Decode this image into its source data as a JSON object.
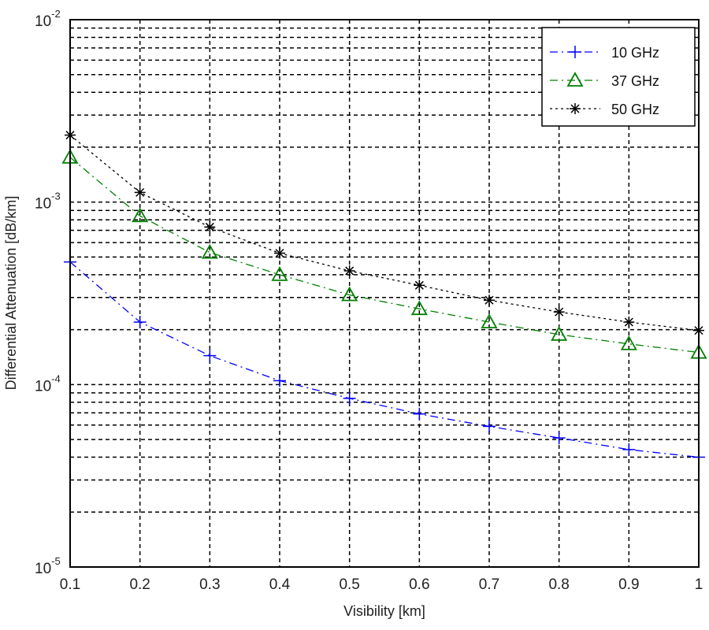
{
  "chart_data": {
    "type": "line",
    "title": "",
    "xlabel": "Visibility [km]",
    "ylabel": "Differential Attenuation [dB/km]",
    "xlim": [
      0.1,
      1.0
    ],
    "ylim": [
      1e-05,
      0.01
    ],
    "yscale": "log",
    "grid": true,
    "legend_position": "top-right",
    "x_ticks": [
      "0.1",
      "0.2",
      "0.3",
      "0.4",
      "0.5",
      "0.6",
      "0.7",
      "0.8",
      "0.9",
      "1"
    ],
    "y_ticks": [
      {
        "base": "10",
        "exp": "-5"
      },
      {
        "base": "10",
        "exp": "-4"
      },
      {
        "base": "10",
        "exp": "-3"
      },
      {
        "base": "10",
        "exp": "-2"
      }
    ],
    "x": [
      0.1,
      0.2,
      0.3,
      0.4,
      0.5,
      0.6,
      0.7,
      0.8,
      0.9,
      1.0
    ],
    "series": [
      {
        "name": "10 GHz",
        "color": "#0000ff",
        "marker": "plus",
        "dash": "10 5 2 5",
        "values": [
          0.00047,
          0.00022,
          0.000144,
          0.000105,
          8.4e-05,
          6.9e-05,
          5.9e-05,
          5.1e-05,
          4.4e-05,
          4e-05
        ]
      },
      {
        "name": "37 GHz",
        "color": "#008000",
        "marker": "triangle",
        "dash": "10 5 2 5",
        "values": [
          0.00176,
          0.00084,
          0.00053,
          0.0004,
          0.00031,
          0.00026,
          0.00022,
          0.000188,
          0.000167,
          0.00015
        ]
      },
      {
        "name": "50 GHz",
        "color": "#000000",
        "marker": "star",
        "dash": "3 4",
        "values": [
          0.00233,
          0.00113,
          0.00073,
          0.000525,
          0.00042,
          0.00035,
          0.00029,
          0.00025,
          0.00022,
          0.000198
        ]
      }
    ]
  }
}
